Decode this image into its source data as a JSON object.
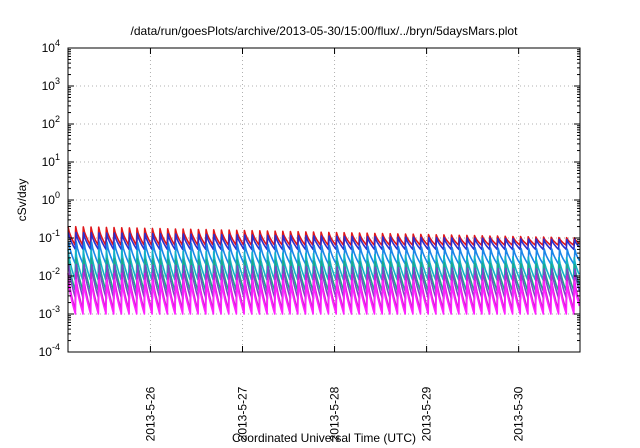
{
  "chart_data": {
    "type": "line",
    "title": "/data/run/goesPlots/archive/2013-05-30/15:00/flux/../bryn/5daysMars.plot",
    "xlabel": "Coordinated Universal Time (UTC)",
    "ylabel": "cSv/day",
    "yscale": "log",
    "ylim": [
      0.0001,
      10000
    ],
    "xlim": [
      "2013-05-25 02:30",
      "2013-05-30 16:00"
    ],
    "grid": true,
    "x_ticks": [
      "2013-5-26",
      "2013-5-27",
      "2013-5-28",
      "2013-5-29",
      "2013-5-30"
    ],
    "y_ticks": [
      {
        "base": "10",
        "exp": "-4"
      },
      {
        "base": "10",
        "exp": "-3"
      },
      {
        "base": "10",
        "exp": "-2"
      },
      {
        "base": "10",
        "exp": "-1"
      },
      {
        "base": "10",
        "exp": "0"
      },
      {
        "base": "10",
        "exp": "1"
      },
      {
        "base": "10",
        "exp": "2"
      },
      {
        "base": "10",
        "exp": "3"
      },
      {
        "base": "10",
        "exp": "4"
      }
    ],
    "cycle_period_hours": 2.0,
    "series": [
      {
        "color": "#e0161a",
        "peak_start": 0.2,
        "peak_end": 0.1,
        "trough": 0.065
      },
      {
        "color": "#2a2fd0",
        "peak_start": 0.14,
        "peak_end": 0.09,
        "trough": 0.05
      },
      {
        "color": "#1a86e8",
        "peak_start": 0.08,
        "peak_end": 0.05,
        "trough": 0.02
      },
      {
        "color": "#12b3c8",
        "peak_start": 0.05,
        "peak_end": 0.03,
        "trough": 0.008
      },
      {
        "color": "#1fa88a",
        "peak_start": 0.03,
        "peak_end": 0.02,
        "trough": 0.004
      },
      {
        "color": "#7a46c8",
        "peak_start": 0.02,
        "peak_end": 0.015,
        "trough": 0.0025
      },
      {
        "color": "#d21ed2",
        "peak_start": 0.012,
        "peak_end": 0.01,
        "trough": 0.0013
      },
      {
        "color": "#ff22ff",
        "peak_start": 0.008,
        "peak_end": 0.007,
        "trough": 0.001
      }
    ]
  }
}
